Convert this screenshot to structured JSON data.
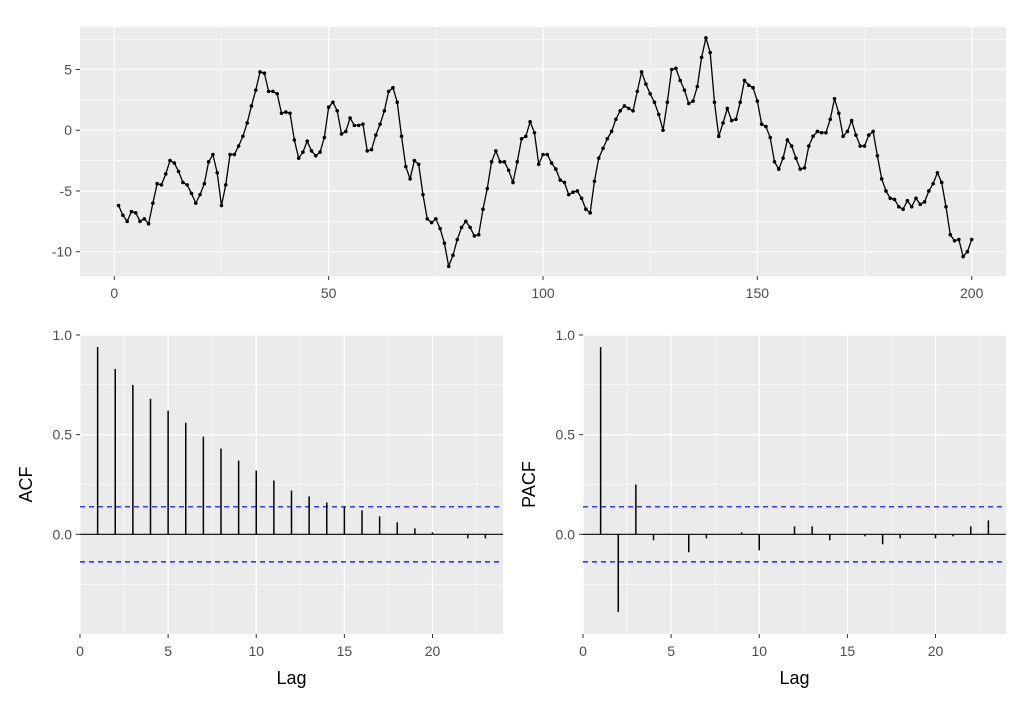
{
  "chart_data": [
    {
      "type": "line",
      "title": "",
      "xlabel": "",
      "ylabel": "",
      "xlim": [
        -8,
        208
      ],
      "ylim": [
        -12,
        8.5
      ],
      "x_ticks": [
        0,
        50,
        100,
        150,
        200
      ],
      "y_ticks": [
        -10,
        -5,
        0,
        5
      ],
      "grid": true,
      "colors": {
        "panel": "#ebebeb",
        "grid": "#ffffff",
        "line": "#000000"
      },
      "x_start": 1,
      "y": [
        -6.2,
        -7.0,
        -7.5,
        -6.7,
        -6.8,
        -7.5,
        -7.3,
        -7.7,
        -6.0,
        -4.4,
        -4.5,
        -3.6,
        -2.5,
        -2.7,
        -3.4,
        -4.3,
        -4.5,
        -5.2,
        -6.0,
        -5.3,
        -4.4,
        -2.6,
        -2.0,
        -3.5,
        -6.2,
        -4.5,
        -2.0,
        -2.0,
        -1.3,
        -0.5,
        0.6,
        2.0,
        3.3,
        4.8,
        4.7,
        3.2,
        3.2,
        3.0,
        1.4,
        1.5,
        1.4,
        -0.8,
        -2.3,
        -1.8,
        -0.9,
        -1.7,
        -2.1,
        -1.8,
        -0.6,
        1.9,
        2.3,
        1.6,
        -0.3,
        -0.1,
        1.0,
        0.4,
        0.4,
        0.5,
        -1.7,
        -1.6,
        -0.4,
        0.5,
        1.6,
        3.2,
        3.5,
        2.3,
        -0.5,
        -3.0,
        -4.0,
        -2.5,
        -2.8,
        -5.3,
        -7.3,
        -7.6,
        -7.3,
        -8.1,
        -9.3,
        -11.2,
        -10.3,
        -9.0,
        -8.0,
        -7.5,
        -8.0,
        -8.7,
        -8.6,
        -6.5,
        -4.8,
        -2.6,
        -1.7,
        -2.6,
        -2.6,
        -3.3,
        -4.3,
        -2.6,
        -0.7,
        -0.5,
        0.7,
        -0.2,
        -2.8,
        -2.0,
        -2.0,
        -2.7,
        -3.2,
        -4.1,
        -4.3,
        -5.3,
        -5.1,
        -5.0,
        -5.6,
        -6.5,
        -6.8,
        -4.2,
        -2.3,
        -1.5,
        -0.7,
        -0.1,
        0.9,
        1.6,
        2.0,
        1.8,
        1.6,
        3.2,
        4.8,
        3.8,
        3.0,
        2.3,
        1.3,
        0.0,
        2.3,
        5.0,
        5.1,
        4.1,
        3.3,
        2.2,
        2.4,
        3.6,
        6.0,
        7.6,
        6.4,
        2.3,
        -0.5,
        0.6,
        1.8,
        0.8,
        0.9,
        2.3,
        4.1,
        3.7,
        3.5,
        2.4,
        0.5,
        0.3,
        -0.6,
        -2.6,
        -3.2,
        -2.3,
        -0.8,
        -1.3,
        -2.3,
        -3.2,
        -3.1,
        -1.3,
        -0.5,
        -0.1,
        -0.2,
        -0.2,
        0.9,
        2.6,
        1.4,
        -0.5,
        -0.1,
        0.8,
        -0.4,
        -1.3,
        -1.3,
        -0.4,
        -0.1,
        -2.1,
        -4.0,
        -5.0,
        -5.6,
        -5.7,
        -6.3,
        -6.5,
        -5.8,
        -6.3,
        -5.6,
        -6.1,
        -5.9,
        -5.0,
        -4.4,
        -3.5,
        -4.3,
        -6.3,
        -8.6,
        -9.1,
        -9.0,
        -10.4,
        -10.0,
        -9.0
      ]
    },
    {
      "type": "bar",
      "title": "",
      "xlabel": "Lag",
      "ylabel": "ACF",
      "xlim": [
        0,
        24
      ],
      "ylim": [
        -0.5,
        1.0
      ],
      "x_ticks": [
        0,
        5,
        10,
        15,
        20
      ],
      "y_ticks": [
        0.0,
        0.5,
        1.0
      ],
      "y_tick_labels": [
        "0.0",
        "0.5",
        "1.0"
      ],
      "grid": true,
      "confidence_band": 0.138,
      "colors": {
        "panel": "#ebebeb",
        "grid": "#ffffff",
        "bar": "#000000",
        "band": "#0000ff"
      },
      "lags": [
        1,
        2,
        3,
        4,
        5,
        6,
        7,
        8,
        9,
        10,
        11,
        12,
        13,
        14,
        15,
        16,
        17,
        18,
        19,
        20,
        21,
        22,
        23
      ],
      "values": [
        0.94,
        0.83,
        0.75,
        0.68,
        0.62,
        0.56,
        0.49,
        0.43,
        0.37,
        0.32,
        0.27,
        0.22,
        0.19,
        0.16,
        0.14,
        0.12,
        0.09,
        0.06,
        0.03,
        0.01,
        0.0,
        -0.02,
        -0.02
      ]
    },
    {
      "type": "bar",
      "title": "",
      "xlabel": "Lag",
      "ylabel": "PACF",
      "xlim": [
        0,
        24
      ],
      "ylim": [
        -0.5,
        1.0
      ],
      "x_ticks": [
        0,
        5,
        10,
        15,
        20
      ],
      "y_ticks": [
        0.0,
        0.5,
        1.0
      ],
      "y_tick_labels": [
        "0.0",
        "0.5",
        "1.0"
      ],
      "grid": true,
      "confidence_band": 0.138,
      "colors": {
        "panel": "#ebebeb",
        "grid": "#ffffff",
        "bar": "#000000",
        "band": "#0000ff"
      },
      "lags": [
        1,
        2,
        3,
        4,
        5,
        6,
        7,
        8,
        9,
        10,
        11,
        12,
        13,
        14,
        15,
        16,
        17,
        18,
        19,
        20,
        21,
        22,
        23
      ],
      "values": [
        0.94,
        -0.39,
        0.25,
        -0.03,
        0.0,
        -0.09,
        -0.02,
        0.0,
        0.01,
        -0.08,
        0.0,
        0.04,
        0.04,
        -0.03,
        0.0,
        -0.01,
        -0.05,
        -0.02,
        0.0,
        -0.02,
        -0.01,
        0.04,
        0.07
      ]
    }
  ]
}
